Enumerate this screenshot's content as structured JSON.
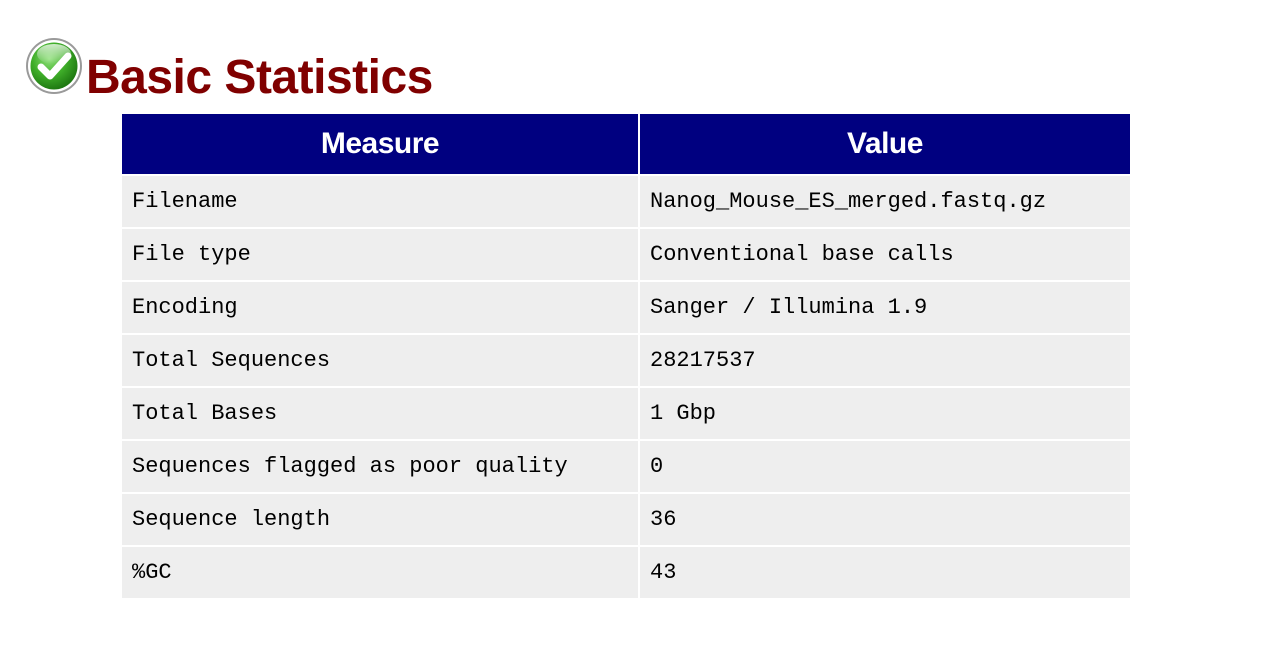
{
  "section": {
    "status": "pass",
    "status_icon": "check-circle-icon",
    "status_color": "#3fae29",
    "title": "Basic Statistics",
    "title_color": "#800000"
  },
  "table": {
    "header_color": "#000080",
    "row_color": "#eeeeee",
    "headers": {
      "measure": "Measure",
      "value": "Value"
    },
    "rows": [
      {
        "measure": "Filename",
        "value": "Nanog_Mouse_ES_merged.fastq.gz"
      },
      {
        "measure": "File type",
        "value": "Conventional base calls"
      },
      {
        "measure": "Encoding",
        "value": "Sanger / Illumina 1.9"
      },
      {
        "measure": "Total Sequences",
        "value": "28217537"
      },
      {
        "measure": "Total Bases",
        "value": "1 Gbp"
      },
      {
        "measure": "Sequences flagged as poor quality",
        "value": "0"
      },
      {
        "measure": "Sequence length",
        "value": "36"
      },
      {
        "measure": "%GC",
        "value": "43"
      }
    ]
  }
}
